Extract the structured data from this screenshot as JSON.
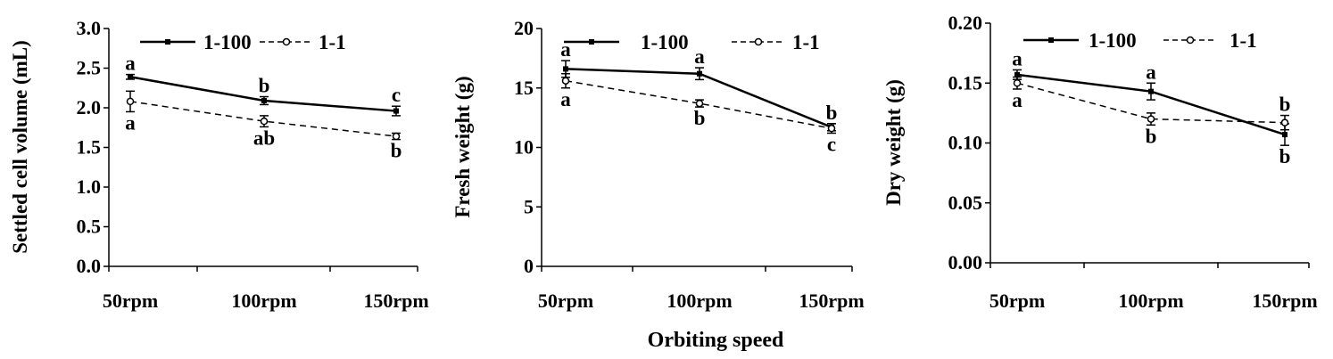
{
  "figure": {
    "x_title": "Orbiting speed"
  },
  "chart_data": [
    {
      "type": "line",
      "ylabel": "Settled cell volume (mL)",
      "categories": [
        "50rpm",
        "100rpm",
        "150rpm"
      ],
      "ylim": [
        0,
        3.0
      ],
      "yticks": [
        "0.0",
        "0.5",
        "1.0",
        "1.5",
        "2.0",
        "2.5",
        "3.0"
      ],
      "series": [
        {
          "name": "1-100",
          "style": "solid",
          "values": [
            2.39,
            2.09,
            1.96
          ],
          "errors": [
            0.03,
            0.05,
            0.06
          ],
          "letters": [
            "a",
            "b",
            "c"
          ]
        },
        {
          "name": "1-1",
          "style": "dashed",
          "values": [
            2.08,
            1.83,
            1.64
          ],
          "errors": [
            0.13,
            0.07,
            0.04
          ],
          "letters": [
            "a",
            "ab",
            "b"
          ]
        }
      ]
    },
    {
      "type": "line",
      "ylabel": "Fresh weight (g)",
      "categories": [
        "50rpm",
        "100rpm",
        "150rpm"
      ],
      "ylim": [
        0,
        20
      ],
      "yticks": [
        "0",
        "5",
        "10",
        "15",
        "20"
      ],
      "series": [
        {
          "name": "1-100",
          "style": "solid",
          "values": [
            16.6,
            16.2,
            11.7
          ],
          "errors": [
            0.7,
            0.5,
            0.3
          ],
          "letters": [
            "a",
            "a",
            "b"
          ]
        },
        {
          "name": "1-1",
          "style": "dashed",
          "values": [
            15.6,
            13.7,
            11.6
          ],
          "errors": [
            0.6,
            0.3,
            0.4
          ],
          "letters": [
            "a",
            "b",
            "c"
          ]
        }
      ]
    },
    {
      "type": "line",
      "ylabel": "Dry weight (g)",
      "categories": [
        "50rpm",
        "100rpm",
        "150rpm"
      ],
      "ylim": [
        0,
        0.2
      ],
      "yticks": [
        "0.00",
        "0.05",
        "0.10",
        "0.15",
        "0.20"
      ],
      "series": [
        {
          "name": "1-100",
          "style": "solid",
          "values": [
            0.157,
            0.143,
            0.107
          ],
          "errors": [
            0.004,
            0.007,
            0.009
          ],
          "letters": [
            "a",
            "a",
            "b"
          ]
        },
        {
          "name": "1-1",
          "style": "dashed",
          "values": [
            0.15,
            0.12,
            0.117
          ],
          "errors": [
            0.005,
            0.005,
            0.006
          ],
          "letters": [
            "a",
            "b",
            "b"
          ]
        }
      ]
    }
  ]
}
